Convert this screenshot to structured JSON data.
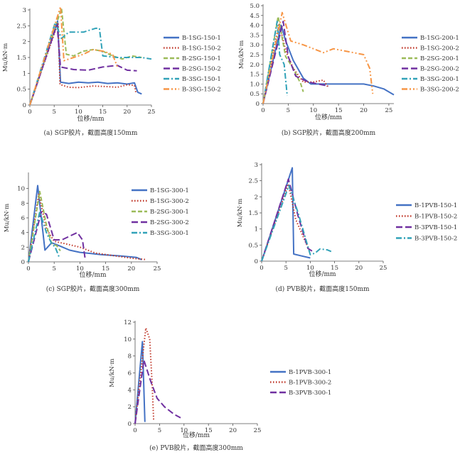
{
  "colors": {
    "blue": "#4472C4",
    "red": "#C0392B",
    "green": "#9BBB59",
    "purple": "#7030A0",
    "teal": "#31A2B8",
    "orange": "#F79646",
    "axis": "#555555"
  },
  "chart_data": [
    {
      "type": "line",
      "caption": "(a) SGP胶片，截面高度150mm",
      "xlabel": "位移/mm",
      "ylabel": "Mu/kN·m",
      "xlim": [
        0,
        25
      ],
      "ylim": [
        0,
        3.0
      ],
      "xticks": [
        0,
        5,
        10,
        15,
        20,
        25
      ],
      "yticks": [
        0,
        0.5,
        1.0,
        1.5,
        2.0,
        2.5,
        3.0
      ],
      "ytick_labels": [
        "0",
        "0.5",
        "1",
        "1.5",
        "2",
        "2.5",
        "3"
      ],
      "series": [
        {
          "name": "B-1SG-150-1",
          "color": "blue",
          "dash": "solid",
          "points": [
            [
              0,
              0
            ],
            [
              5.7,
              2.65
            ],
            [
              6.3,
              0.72
            ],
            [
              8,
              0.68
            ],
            [
              10,
              0.72
            ],
            [
              12,
              0.7
            ],
            [
              14,
              0.72
            ],
            [
              16,
              0.68
            ],
            [
              18,
              0.7
            ],
            [
              20,
              0.66
            ],
            [
              21.5,
              0.7
            ],
            [
              22.2,
              0.4
            ],
            [
              23,
              0.35
            ]
          ]
        },
        {
          "name": "B-1SG-150-2",
          "color": "red",
          "dash": "dot",
          "points": [
            [
              0,
              0
            ],
            [
              5.8,
              2.6
            ],
            [
              6.2,
              0.65
            ],
            [
              8,
              0.56
            ],
            [
              10,
              0.55
            ],
            [
              13,
              0.6
            ],
            [
              16,
              0.58
            ],
            [
              18,
              0.56
            ],
            [
              20,
              0.64
            ],
            [
              21.5,
              0.62
            ],
            [
              21.8,
              0.4
            ]
          ]
        },
        {
          "name": "B-2SG-150-1",
          "color": "green",
          "dash": "dash",
          "points": [
            [
              0,
              0
            ],
            [
              6.5,
              3.05
            ],
            [
              7.5,
              1.6
            ],
            [
              9,
              1.55
            ],
            [
              11,
              1.7
            ],
            [
              13,
              1.75
            ],
            [
              15,
              1.7
            ],
            [
              17,
              1.55
            ],
            [
              19,
              1.45
            ],
            [
              21,
              1.55
            ],
            [
              23,
              1.5
            ]
          ]
        },
        {
          "name": "B-2SG-150-2",
          "color": "purple",
          "dash": "longdash",
          "points": [
            [
              0,
              0
            ],
            [
              5.6,
              2.55
            ],
            [
              6.3,
              1.2
            ],
            [
              9,
              1.12
            ],
            [
              12,
              1.1
            ],
            [
              15,
              1.2
            ],
            [
              18,
              1.25
            ],
            [
              20,
              1.1
            ],
            [
              22,
              1.08
            ]
          ]
        },
        {
          "name": "B-3SG-150-1",
          "color": "teal",
          "dash": "dashdot",
          "points": [
            [
              0,
              0
            ],
            [
              5.2,
              2.6
            ],
            [
              6.5,
              2.1
            ],
            [
              8,
              2.3
            ],
            [
              11,
              2.3
            ],
            [
              13.5,
              2.42
            ],
            [
              14.3,
              2.42
            ],
            [
              15,
              1.55
            ],
            [
              18,
              1.5
            ],
            [
              21,
              1.5
            ],
            [
              23,
              1.5
            ],
            [
              25,
              1.45
            ]
          ]
        },
        {
          "name": "B-3SG-150-2",
          "color": "orange",
          "dash": "dashdotdot",
          "points": [
            [
              0,
              0
            ],
            [
              6.3,
              3.1
            ],
            [
              7,
              1.4
            ],
            [
              9,
              1.5
            ],
            [
              11,
              1.6
            ],
            [
              13,
              1.75
            ],
            [
              15,
              1.7
            ],
            [
              17,
              1.6
            ],
            [
              18,
              1.2
            ]
          ]
        }
      ]
    },
    {
      "type": "line",
      "caption": "(b) SGP胶片，截面高度200mm",
      "xlabel": "位移/mm",
      "ylabel": "Mu/kN·m",
      "xlim": [
        0,
        26
      ],
      "ylim": [
        0,
        5.0
      ],
      "xticks": [
        0,
        5,
        10,
        15,
        20,
        25
      ],
      "yticks": [
        0,
        0.5,
        1.0,
        1.5,
        2.0,
        2.5,
        3.0,
        3.5,
        4.0,
        4.5,
        5.0
      ],
      "ytick_labels": [
        "0",
        "0.5",
        "1.0",
        "1.5",
        "2.0",
        "2.5",
        "3.0",
        "3.5",
        "4.0",
        "4.5",
        "5.0"
      ],
      "series": [
        {
          "name": "B-1SG-200-1",
          "color": "blue",
          "dash": "solid",
          "points": [
            [
              0,
              0
            ],
            [
              3.6,
              4.0
            ],
            [
              4.5,
              3.2
            ],
            [
              6,
              2.2
            ],
            [
              8,
              1.3
            ],
            [
              9.5,
              1.0
            ],
            [
              12,
              1.0
            ],
            [
              16,
              1.0
            ],
            [
              20,
              1.0
            ],
            [
              22,
              0.9
            ],
            [
              24,
              0.75
            ],
            [
              26,
              0.45
            ]
          ]
        },
        {
          "name": "B-1SG-200-2",
          "color": "red",
          "dash": "dot",
          "points": [
            [
              0,
              0
            ],
            [
              3.2,
              4.1
            ],
            [
              4.5,
              2.7
            ],
            [
              6,
              1.8
            ],
            [
              8,
              1.1
            ],
            [
              10,
              1.1
            ],
            [
              12,
              1.2
            ],
            [
              13,
              0.8
            ]
          ]
        },
        {
          "name": "B-2SG-200-1",
          "color": "green",
          "dash": "dash",
          "points": [
            [
              0,
              0
            ],
            [
              3.0,
              4.45
            ],
            [
              4.5,
              2.4
            ],
            [
              6,
              1.8
            ],
            [
              7.5,
              1.0
            ],
            [
              8,
              0.6
            ]
          ]
        },
        {
          "name": "B-2SG-200-2",
          "color": "purple",
          "dash": "longdash",
          "points": [
            [
              0,
              0
            ],
            [
              4.0,
              4.2
            ],
            [
              5,
              2.4
            ],
            [
              6.5,
              1.4
            ],
            [
              9,
              1.1
            ],
            [
              11,
              1.0
            ],
            [
              13,
              0.9
            ]
          ]
        },
        {
          "name": "B-3SG-200-1",
          "color": "teal",
          "dash": "dashdot",
          "points": [
            [
              0,
              0
            ],
            [
              2.8,
              4.2
            ],
            [
              3.3,
              2.5
            ],
            [
              4.2,
              2.0
            ],
            [
              4.8,
              0.4
            ]
          ]
        },
        {
          "name": "B-3SG-200-2",
          "color": "orange",
          "dash": "dashdotdot",
          "points": [
            [
              0,
              0
            ],
            [
              3.8,
              4.65
            ],
            [
              5.5,
              3.2
            ],
            [
              8,
              3.0
            ],
            [
              10,
              2.8
            ],
            [
              12,
              2.6
            ],
            [
              14,
              2.8
            ],
            [
              16,
              2.7
            ],
            [
              18,
              2.6
            ],
            [
              20,
              2.5
            ],
            [
              21.2,
              1.8
            ],
            [
              21.8,
              0.5
            ]
          ]
        }
      ]
    },
    {
      "type": "line",
      "caption": "(c) SGP胶片，截面高度300mm",
      "xlabel": "位移/mm",
      "ylabel": "Mu/kN·m",
      "xlim": [
        0,
        25
      ],
      "ylim": [
        0,
        12
      ],
      "xticks": [
        0,
        5,
        10,
        15,
        20,
        25
      ],
      "yticks": [
        0,
        2,
        4,
        6,
        8,
        10
      ],
      "ytick_labels": [
        "0",
        "2",
        "4",
        "6",
        "8",
        "10"
      ],
      "series": [
        {
          "name": "B-1SG-300-1",
          "color": "blue",
          "dash": "solid",
          "points": [
            [
              0,
              0
            ],
            [
              1.8,
              10.4
            ],
            [
              3.2,
              1.6
            ],
            [
              4.5,
              2.6
            ],
            [
              6,
              2.2
            ],
            [
              8,
              1.6
            ],
            [
              10,
              1.3
            ],
            [
              14,
              1.0
            ],
            [
              18,
              0.8
            ],
            [
              21,
              0.6
            ],
            [
              22,
              0.3
            ]
          ]
        },
        {
          "name": "B-1SG-300-2",
          "color": "red",
          "dash": "dot",
          "points": [
            [
              0,
              0
            ],
            [
              2.0,
              9.2
            ],
            [
              3.5,
              4.5
            ],
            [
              5,
              2.8
            ],
            [
              7,
              2.5
            ],
            [
              10,
              2.0
            ],
            [
              13,
              1.2
            ],
            [
              16,
              0.9
            ],
            [
              20,
              0.5
            ],
            [
              23,
              0.3
            ]
          ]
        },
        {
          "name": "B-2SG-300-1",
          "color": "green",
          "dash": "dash",
          "points": [
            [
              0,
              0
            ],
            [
              2.2,
              9.6
            ],
            [
              3.5,
              5.0
            ],
            [
              4.5,
              2.5
            ],
            [
              5.5,
              2.2
            ],
            [
              6.2,
              1.5
            ]
          ]
        },
        {
          "name": "B-2SG-300-2",
          "color": "purple",
          "dash": "longdash",
          "points": [
            [
              0,
              0
            ],
            [
              2.5,
              6.8
            ],
            [
              3.5,
              6.5
            ],
            [
              5,
              3.0
            ],
            [
              6.5,
              3.0
            ],
            [
              8,
              3.5
            ],
            [
              9.5,
              4.0
            ],
            [
              10.5,
              3.0
            ],
            [
              11,
              0.5
            ]
          ]
        },
        {
          "name": "B-3SG-300-1",
          "color": "teal",
          "dash": "dashdot",
          "points": [
            [
              0,
              0
            ],
            [
              2.2,
              6.8
            ],
            [
              3.5,
              4.0
            ],
            [
              4.5,
              2.5
            ],
            [
              5.2,
              2.0
            ],
            [
              6,
              0.6
            ]
          ]
        }
      ]
    },
    {
      "type": "line",
      "caption": "(d) PVB胶片，截面高度150mm",
      "xlabel": "位移/mm",
      "ylabel": "Mu/kN·m",
      "xlim": [
        0,
        25
      ],
      "ylim": [
        0,
        3.0
      ],
      "xticks": [
        0,
        5,
        10,
        15,
        20,
        25
      ],
      "yticks": [
        0,
        0.5,
        1.0,
        1.5,
        2.0,
        2.5,
        3.0
      ],
      "ytick_labels": [
        "0",
        "0.5",
        "1",
        "1.5",
        "2",
        "2.5",
        "3"
      ],
      "series": [
        {
          "name": "B-1PVB-150-1",
          "color": "blue",
          "dash": "solid",
          "points": [
            [
              0,
              0
            ],
            [
              6.3,
              2.9
            ],
            [
              6.6,
              0.22
            ],
            [
              8,
              0.17
            ],
            [
              10,
              0.1
            ]
          ]
        },
        {
          "name": "B-1PVB-150-2",
          "color": "red",
          "dash": "dot",
          "points": [
            [
              0,
              0
            ],
            [
              5.5,
              2.4
            ],
            [
              7,
              1.3
            ],
            [
              9,
              0.6
            ],
            [
              10,
              0.3
            ]
          ]
        },
        {
          "name": "B-3PVB-150-1",
          "color": "purple",
          "dash": "longdash",
          "points": [
            [
              0,
              0
            ],
            [
              5.5,
              2.55
            ],
            [
              7.5,
              1.4
            ],
            [
              9.5,
              0.4
            ],
            [
              10.5,
              0.3
            ]
          ]
        },
        {
          "name": "B-3PVB-150-2",
          "color": "teal",
          "dash": "dashdot",
          "points": [
            [
              0,
              0
            ],
            [
              5.6,
              2.35
            ],
            [
              7.5,
              1.5
            ],
            [
              10,
              0.2
            ],
            [
              11,
              0.25
            ],
            [
              12,
              0.38
            ],
            [
              13.5,
              0.35
            ],
            [
              14.3,
              0.3
            ]
          ]
        }
      ]
    },
    {
      "type": "line",
      "caption": "(e) PVB胶片，截面高度300mm",
      "xlabel": "位移/mm",
      "ylabel": "Mu/kN·m",
      "xlim": [
        0,
        25
      ],
      "ylim": [
        0,
        12
      ],
      "xticks": [
        0,
        5,
        10,
        15,
        20,
        25
      ],
      "yticks": [
        0,
        2,
        4,
        6,
        8,
        10,
        12
      ],
      "ytick_labels": [
        "0",
        "2",
        "4",
        "6",
        "8",
        "10",
        "12"
      ],
      "series": [
        {
          "name": "B-1PVB-300-1",
          "color": "blue",
          "dash": "solid",
          "points": [
            [
              0,
              0
            ],
            [
              1.5,
              9.7
            ],
            [
              2.0,
              0.2
            ]
          ]
        },
        {
          "name": "B-1PVB-300-2",
          "color": "red",
          "dash": "dot",
          "points": [
            [
              0,
              0
            ],
            [
              2.2,
              11.3
            ],
            [
              3.0,
              10.0
            ],
            [
              3.5,
              4.5
            ],
            [
              3.8,
              0.4
            ]
          ]
        },
        {
          "name": "B-3PVB-300-1",
          "color": "purple",
          "dash": "longdash",
          "points": [
            [
              0,
              0
            ],
            [
              1.8,
              7.5
            ],
            [
              3.2,
              5.0
            ],
            [
              4.5,
              3.0
            ],
            [
              6,
              2.0
            ],
            [
              8,
              1.1
            ],
            [
              9.3,
              0.7
            ]
          ]
        }
      ]
    }
  ]
}
